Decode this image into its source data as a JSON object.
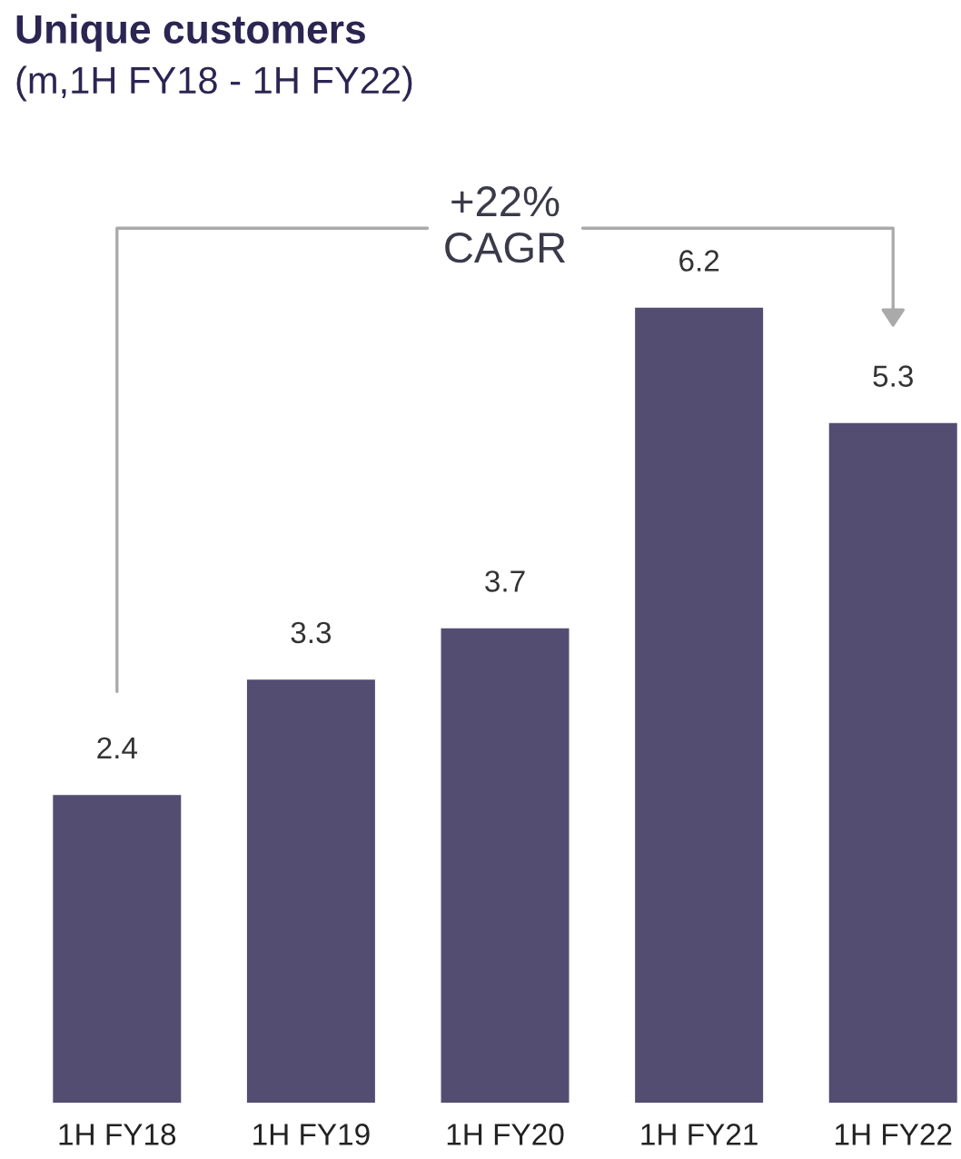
{
  "chart_data": {
    "type": "bar",
    "title": "Unique customers",
    "subtitle": "(m,1H FY18 - 1H FY22)",
    "categories": [
      "1H FY18",
      "1H FY19",
      "1H FY20",
      "1H FY21",
      "1H FY22"
    ],
    "values": [
      2.4,
      3.3,
      3.7,
      6.2,
      5.3
    ],
    "color": "#534d72",
    "data_labels": true,
    "grid": false,
    "legend": false,
    "annotations": [
      "+22%\nCAGR"
    ]
  }
}
